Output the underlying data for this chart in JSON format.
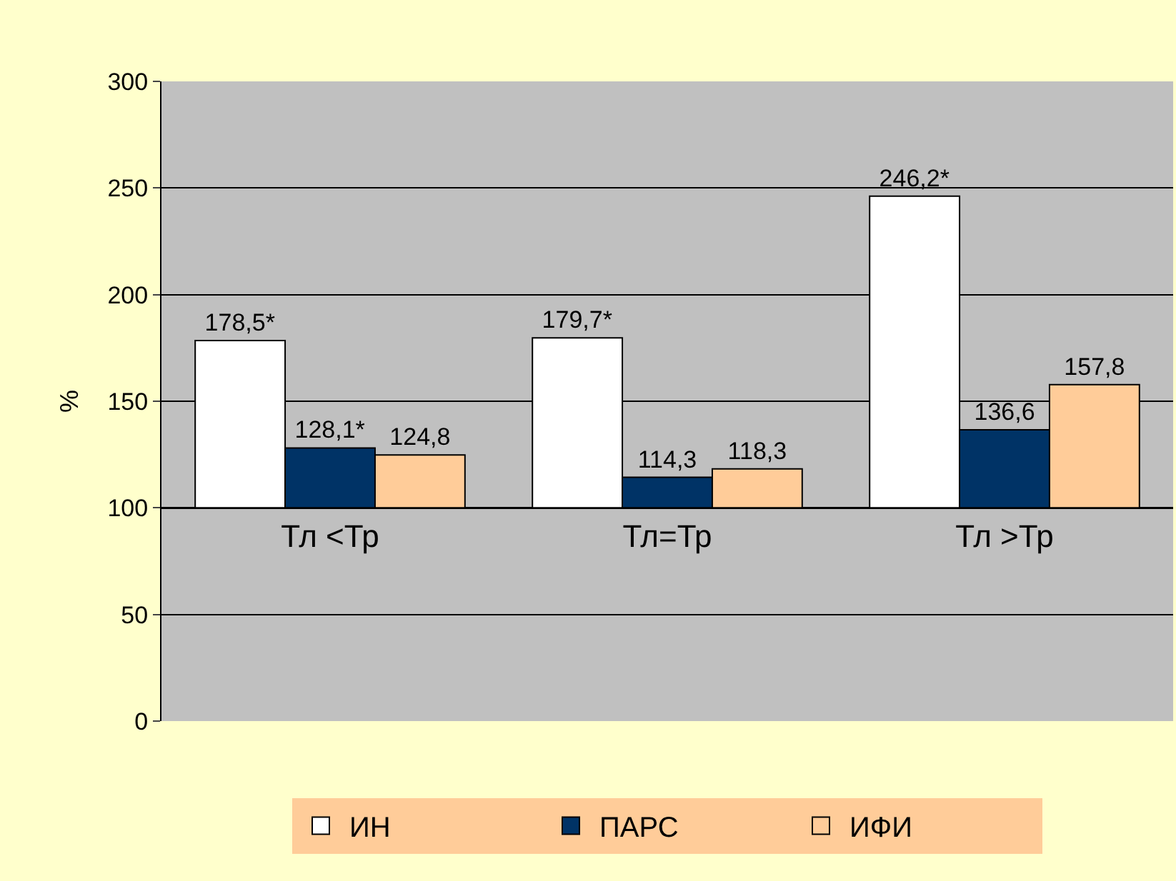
{
  "chart_data": {
    "type": "bar",
    "ylabel": "%",
    "categories": [
      "Тл <Тр",
      "Тл=Тр",
      "Тл >Тр"
    ],
    "series": [
      {
        "name": "ИН",
        "color": "#ffffff",
        "base": [
          100,
          100,
          100
        ],
        "values": [
          78.5,
          79.7,
          146.2
        ],
        "value_labels": [
          "178,5*",
          "179,7*",
          "246,2*"
        ]
      },
      {
        "name": "ПАРС",
        "color": "#003366",
        "base": [
          100,
          100,
          100
        ],
        "values": [
          28.1,
          14.3,
          36.6
        ],
        "value_labels": [
          "128,1*",
          "114,3",
          "136,6"
        ]
      },
      {
        "name": "ИФИ",
        "color": "#ffcc99",
        "base": [
          100,
          100,
          100
        ],
        "values": [
          24.8,
          18.3,
          57.8
        ],
        "value_labels": [
          "124,8",
          "118,3",
          "157,8"
        ]
      }
    ],
    "ylim": [
      0,
      300
    ],
    "yticks": [
      0,
      50,
      100,
      150,
      200,
      250,
      300
    ],
    "grid": "y",
    "legend": "bottom"
  }
}
